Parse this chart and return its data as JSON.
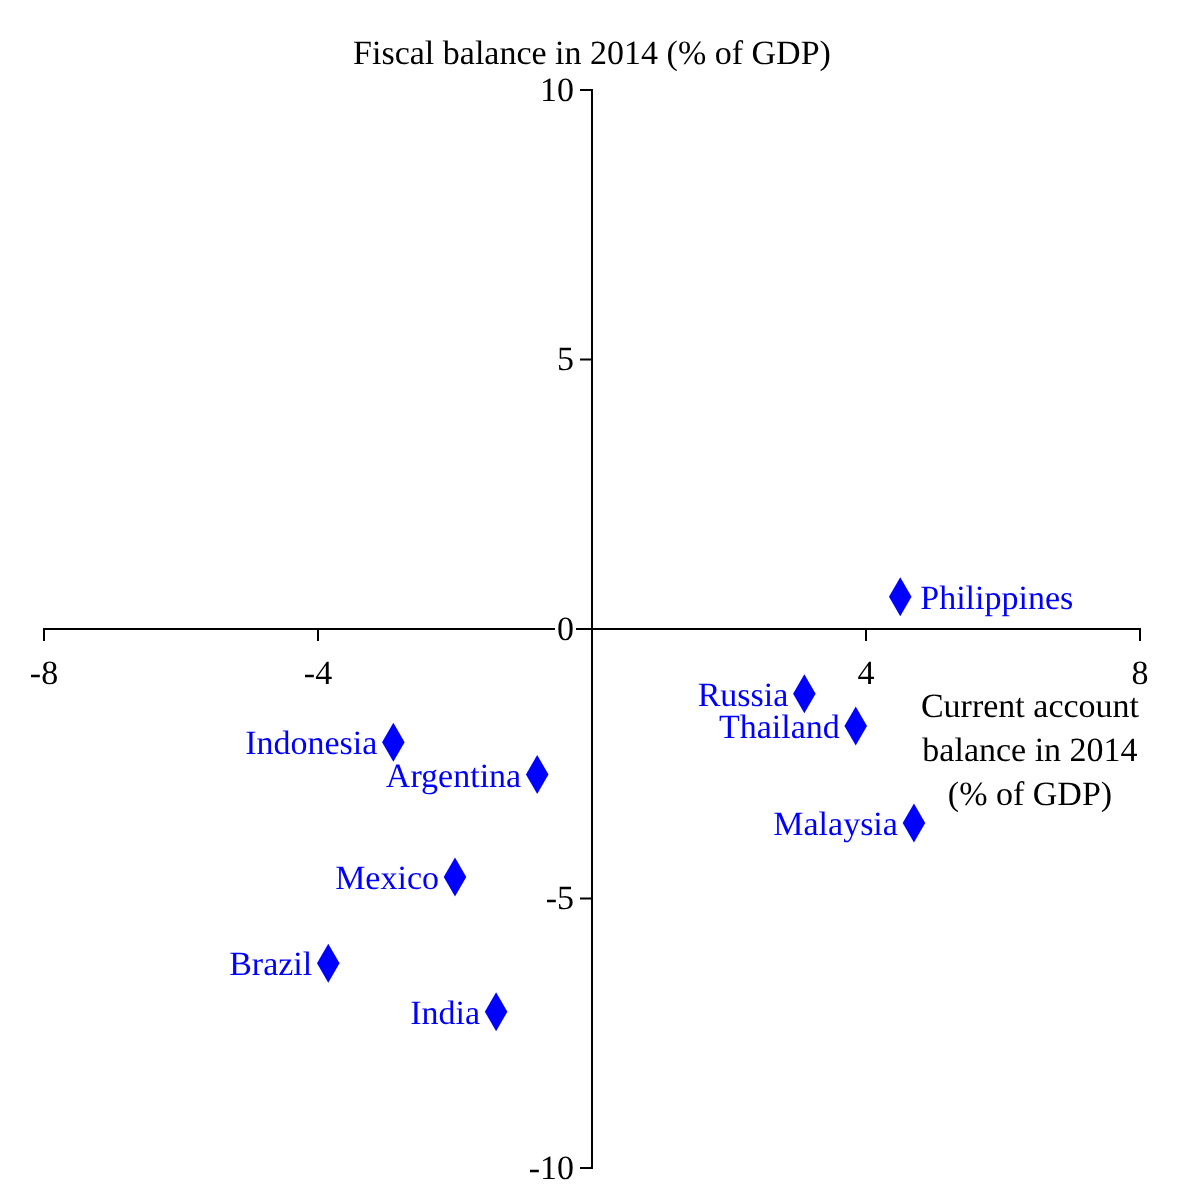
{
  "chart_data": {
    "type": "scatter",
    "ylabel": "Fiscal balance in 2014 (% of GDP)",
    "xlabel": "Current account balance in 2014 (% of GDP)",
    "xlim": [
      -8,
      8
    ],
    "ylim": [
      -10,
      10
    ],
    "xticks": [
      -8,
      -4,
      {
        "value": 0,
        "label": null
      },
      4,
      8
    ],
    "yticks": [
      -10,
      -5,
      0,
      5,
      10
    ],
    "marker": "diamond",
    "legend": false,
    "grid": false,
    "series": [
      {
        "name": "Philippines",
        "color": "#0000ff",
        "x": [
          4.5
        ],
        "values": [
          0.6
        ]
      },
      {
        "name": "Russia",
        "color": "#0000ff",
        "x": [
          3.1
        ],
        "values": [
          -1.2
        ]
      },
      {
        "name": "Thailand",
        "color": "#0000ff",
        "x": [
          3.85
        ],
        "values": [
          -1.8
        ]
      },
      {
        "name": "Malaysia",
        "color": "#0000ff",
        "x": [
          4.7
        ],
        "values": [
          -3.6
        ]
      },
      {
        "name": "Indonesia",
        "color": "#0000ff",
        "x": [
          -2.9
        ],
        "values": [
          -2.1
        ]
      },
      {
        "name": "Argentina",
        "color": "#0000ff",
        "x": [
          -0.8
        ],
        "values": [
          -2.7
        ]
      },
      {
        "name": "Mexico",
        "color": "#0000ff",
        "x": [
          -2.0
        ],
        "values": [
          -4.6
        ]
      },
      {
        "name": "Brazil",
        "color": "#0000ff",
        "x": [
          -3.85
        ],
        "values": [
          -6.2
        ]
      },
      {
        "name": "India",
        "color": "#0000ff",
        "x": [
          -1.4
        ],
        "values": [
          -7.1
        ]
      }
    ]
  }
}
